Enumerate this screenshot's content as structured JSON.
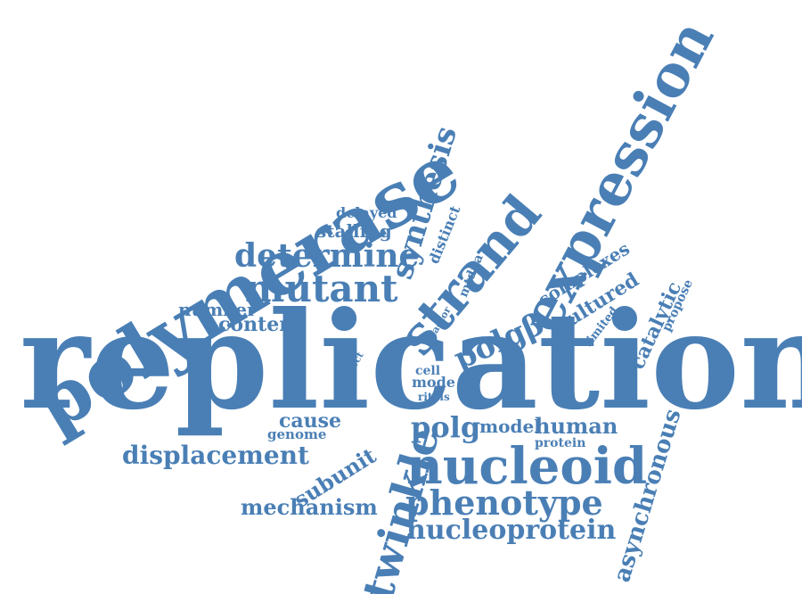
{
  "word_cloud": {
    "color": "#4a7fb5",
    "words": [
      "replication",
      "polymerase",
      "expression",
      "strand",
      "nucleoid",
      "twinkle",
      "mutant",
      "determine",
      "synthesis",
      "phenotype",
      "nucleoprotein",
      "displacement",
      "mechanism",
      "polgβ",
      "polg",
      "human",
      "asynchronous",
      "catalytic",
      "cultured",
      "complexes",
      "stalling",
      "delayed",
      "number",
      "content",
      "subunit",
      "cause",
      "genome",
      "model",
      "protein",
      "distinct",
      "mtdna",
      "factor",
      "limited",
      "propose",
      "effect",
      "short",
      "cell",
      "mode",
      "ritols"
    ]
  }
}
